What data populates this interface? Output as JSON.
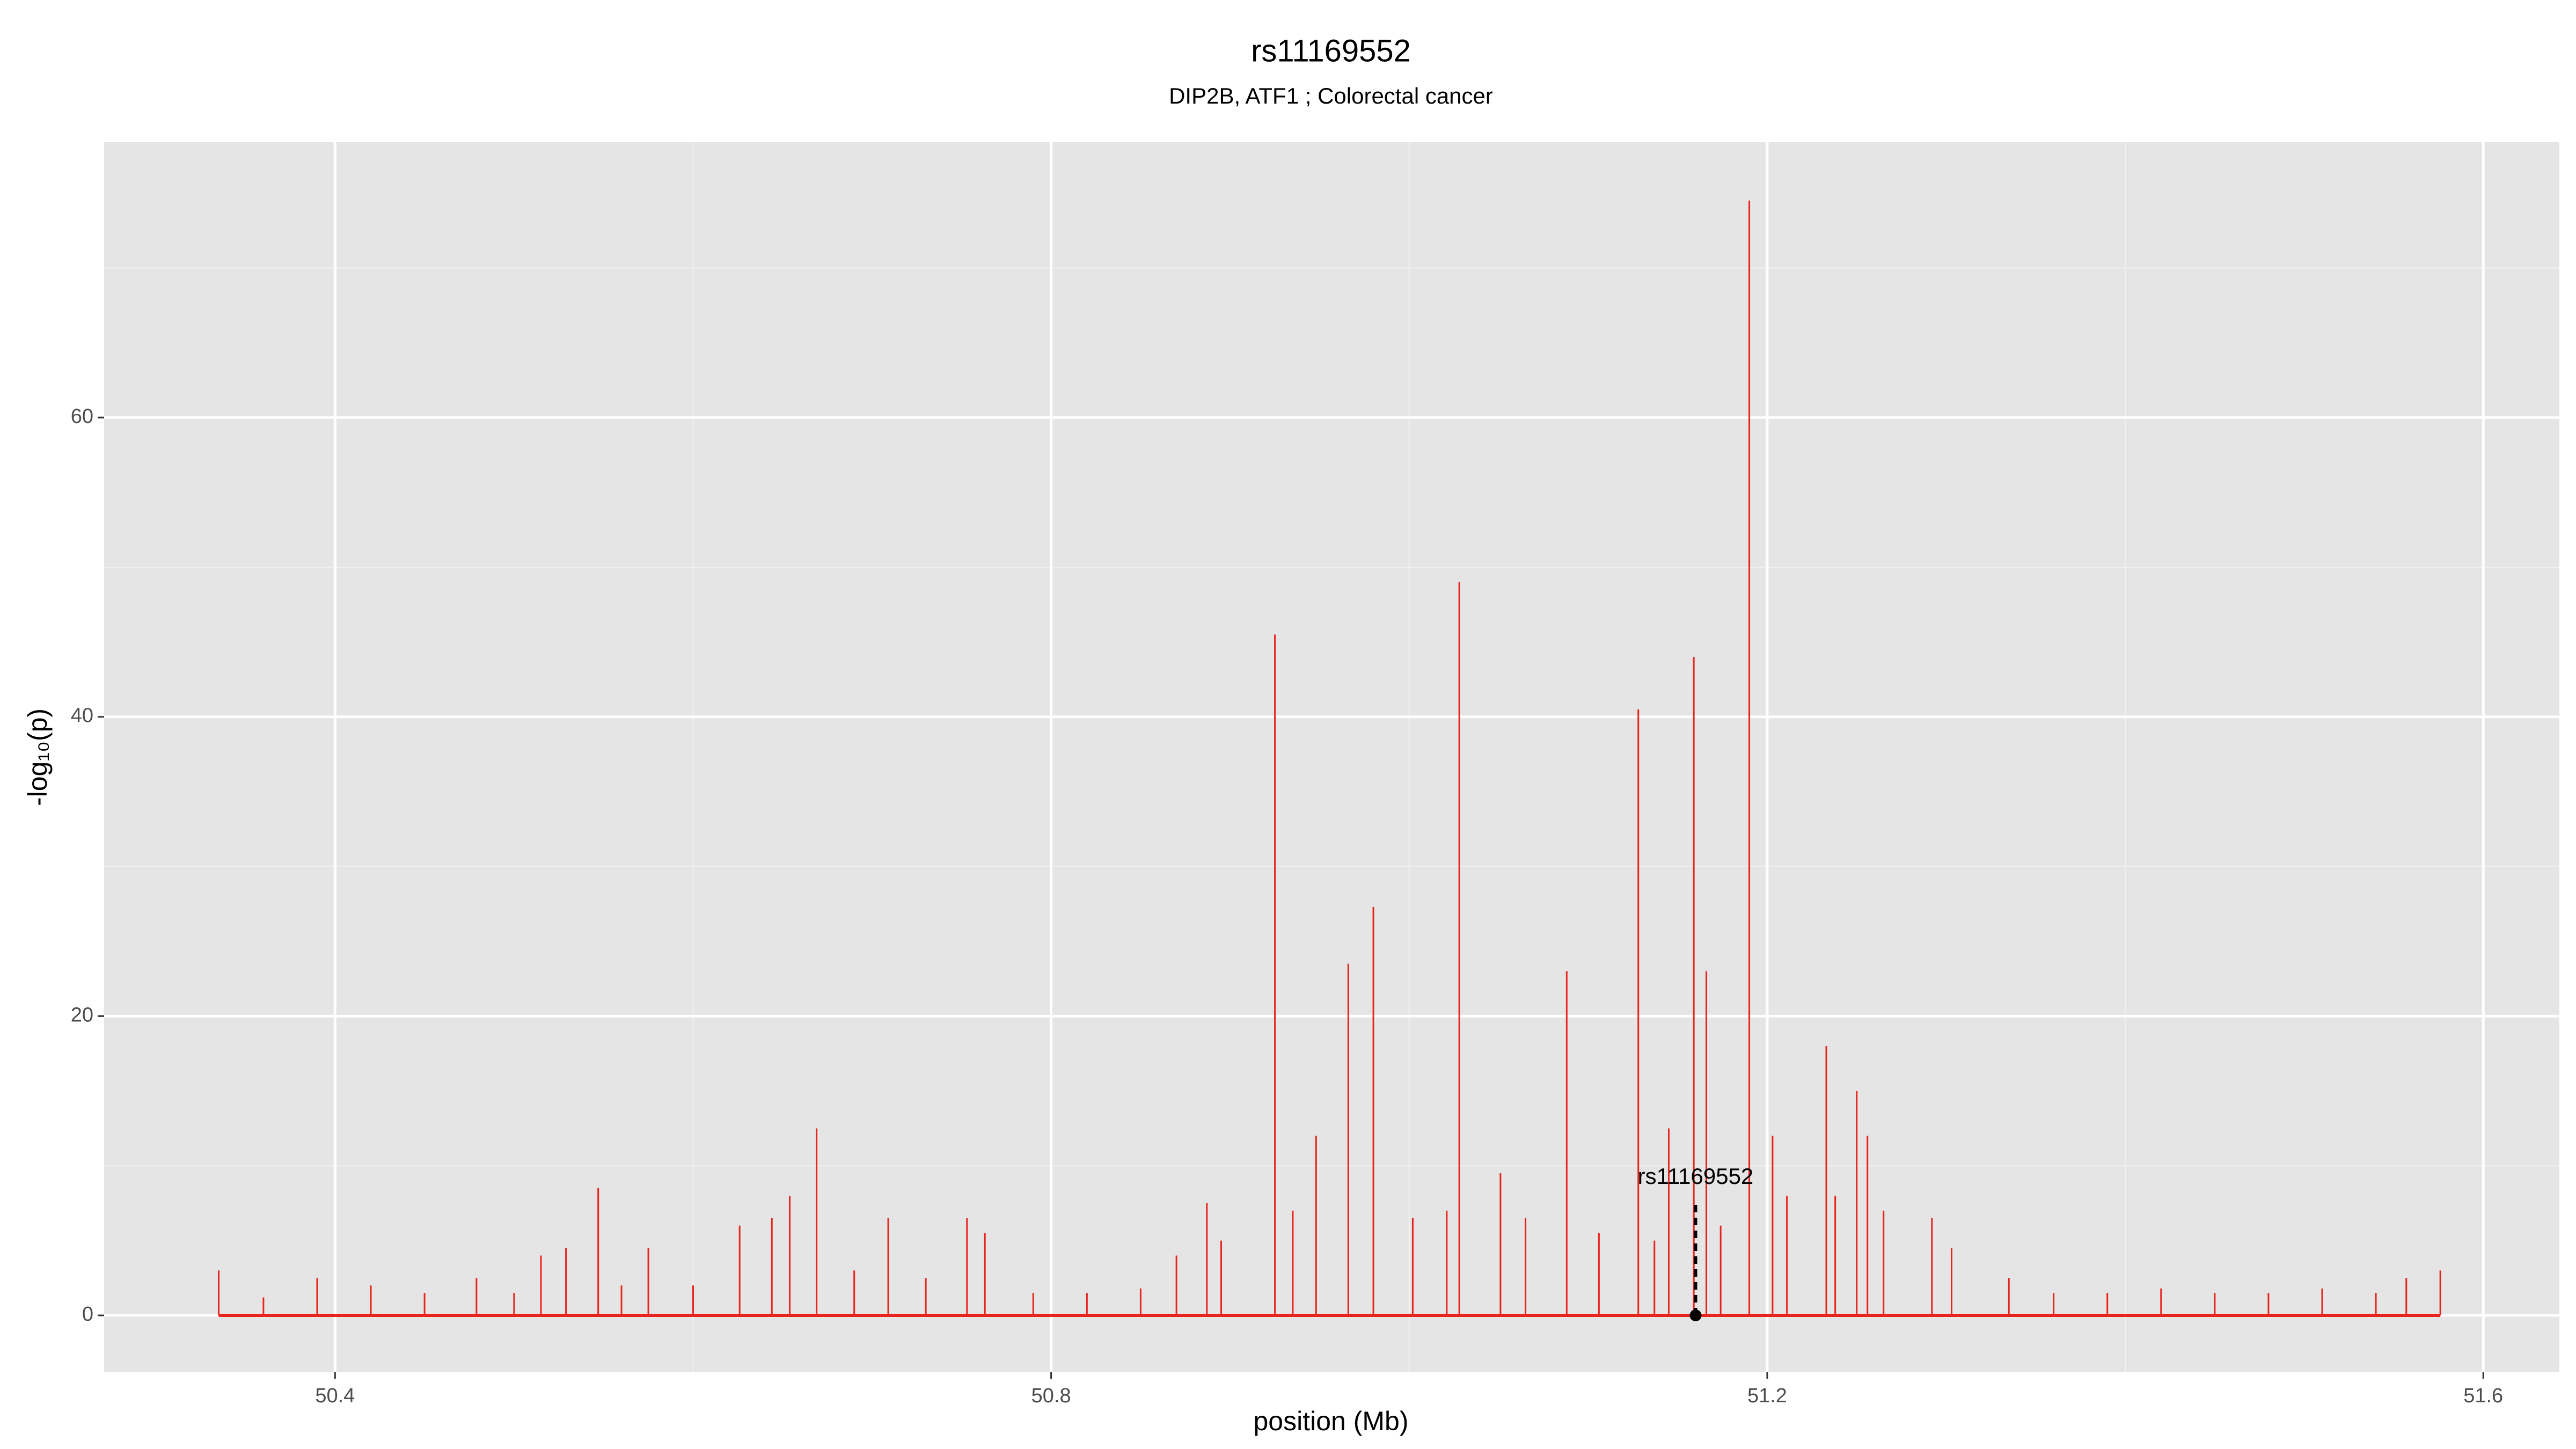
{
  "chart_data": {
    "type": "spike",
    "title": "rs11169552",
    "subtitle": "DIP2B, ATF1 ; Colorectal cancer",
    "x_label": "position (Mb)",
    "y_label": "-log₁₀(p)",
    "color": "#e8241c",
    "grid": true,
    "xlim": [
      50.271,
      51.6425
    ],
    "ylim": [
      -3.8,
      78.4
    ],
    "xticks": [
      50.4,
      50.8,
      51.2,
      51.6
    ],
    "yticks": [
      0,
      20,
      40,
      60
    ],
    "xminor": [
      50.6,
      51.0,
      51.4
    ],
    "yminor": [
      10,
      30,
      50,
      70
    ],
    "x": [
      50.335,
      50.36,
      50.39,
      50.42,
      50.45,
      50.479,
      50.5,
      50.515,
      50.529,
      50.547,
      50.56,
      50.575,
      50.6,
      50.626,
      50.644,
      50.654,
      50.669,
      50.69,
      50.709,
      50.73,
      50.753,
      50.763,
      50.79,
      50.82,
      50.85,
      50.87,
      50.887,
      50.895,
      50.925,
      50.935,
      50.948,
      50.966,
      50.98,
      51.002,
      51.021,
      51.028,
      51.051,
      51.065,
      51.088,
      51.106,
      51.128,
      51.137,
      51.145,
      51.159,
      51.166,
      51.174,
      51.19,
      51.203,
      51.211,
      51.233,
      51.238,
      51.25,
      51.256,
      51.265,
      51.292,
      51.303,
      51.335,
      51.36,
      51.39,
      51.42,
      51.45,
      51.48,
      51.51,
      51.54,
      51.557,
      51.576
    ],
    "values": [
      3,
      1.2,
      2.5,
      2,
      1.5,
      2.5,
      1.5,
      4,
      4.5,
      8.5,
      2,
      4.5,
      2,
      6,
      6.5,
      8,
      12.5,
      3,
      6.5,
      2.5,
      6.5,
      5.5,
      1.5,
      1.5,
      1.8,
      4,
      7.5,
      5,
      45.5,
      7,
      12,
      23.5,
      27.3,
      6.5,
      7,
      49,
      9.5,
      6.5,
      23,
      5.5,
      40.5,
      5,
      12.5,
      44,
      23,
      6,
      74.5,
      12,
      8,
      18,
      8,
      15,
      12,
      7,
      6.5,
      4.5,
      2.5,
      1.5,
      1.5,
      1.8,
      1.5,
      1.5,
      1.8,
      1.5,
      2.5,
      3
    ],
    "annotation": {
      "text": "rs11169552",
      "x": 51.16,
      "y": 0
    }
  }
}
